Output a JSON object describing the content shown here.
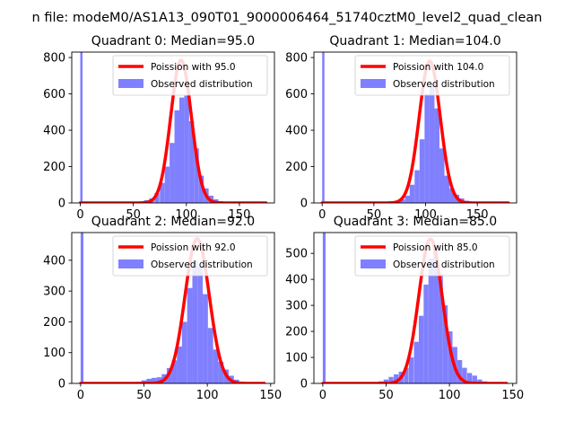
{
  "suptitle": "n file: modeM0/AS1A13_090T01_9000006464_51740cztM0_level2_quad_clean",
  "colors": {
    "poisson": "#ff0000",
    "hist": "#8080ff",
    "axes": "#000000"
  },
  "chart_data": [
    {
      "type": "bar",
      "title": "Quadrant 0: Median=95.0",
      "median": 95.0,
      "xlim": [
        -8,
        183
      ],
      "ylim": [
        0,
        830
      ],
      "xticks": [
        0,
        50,
        100,
        150
      ],
      "yticks": [
        0,
        200,
        400,
        600,
        800
      ],
      "legend": {
        "placement": "top-right",
        "entries": [
          "Poission with 95.0",
          "Observed distribution"
        ]
      },
      "series": [
        {
          "name": "Observed distribution",
          "kind": "histogram",
          "bin_width": 4.6,
          "bins": [
            [
              0,
              830
            ],
            [
              50,
              5
            ],
            [
              55,
              8
            ],
            [
              60,
              15
            ],
            [
              65,
              25
            ],
            [
              70,
              55
            ],
            [
              75,
              110
            ],
            [
              79.6,
              200
            ],
            [
              84.2,
              330
            ],
            [
              88.8,
              510
            ],
            [
              93.4,
              580
            ],
            [
              98,
              590
            ],
            [
              102.6,
              450
            ],
            [
              107.2,
              300
            ],
            [
              111.8,
              150
            ],
            [
              116.4,
              80
            ],
            [
              121,
              40
            ],
            [
              125.6,
              20
            ],
            [
              130.2,
              10
            ],
            [
              134.8,
              5
            ],
            [
              139.4,
              3
            ]
          ]
        },
        {
          "name": "Poission with 95.0",
          "kind": "curve",
          "lambda": 95.0,
          "x_range": [
            0,
            175
          ],
          "peak": 785
        }
      ]
    },
    {
      "type": "bar",
      "title": "Quadrant 1: Median=104.0",
      "median": 104.0,
      "xlim": [
        -8,
        188
      ],
      "ylim": [
        0,
        830
      ],
      "xticks": [
        0,
        50,
        100,
        150
      ],
      "yticks": [
        0,
        200,
        400,
        600,
        800
      ],
      "legend": {
        "placement": "top-right",
        "entries": [
          "Poission with 104.0",
          "Observed distribution"
        ]
      },
      "series": [
        {
          "name": "Observed distribution",
          "kind": "histogram",
          "bin_width": 4.8,
          "bins": [
            [
              0,
              830
            ],
            [
              60,
              5
            ],
            [
              65,
              8
            ],
            [
              70,
              12
            ],
            [
              75,
              20
            ],
            [
              80,
              40
            ],
            [
              84.6,
              100
            ],
            [
              89.4,
              180
            ],
            [
              94.2,
              350
            ],
            [
              99,
              600
            ],
            [
              103.8,
              650
            ],
            [
              108.6,
              520
            ],
            [
              113.4,
              300
            ],
            [
              118.2,
              150
            ],
            [
              123,
              80
            ],
            [
              127.8,
              45
            ],
            [
              132.6,
              25
            ],
            [
              137.4,
              12
            ],
            [
              142.2,
              5
            ]
          ]
        },
        {
          "name": "Poission with 104.0",
          "kind": "curve",
          "lambda": 104.0,
          "x_range": [
            0,
            180
          ],
          "peak": 780
        }
      ]
    },
    {
      "type": "bar",
      "title": "Quadrant 2: Median=92.0",
      "median": 92.0,
      "xlim": [
        -7,
        153
      ],
      "ylim": [
        0,
        490
      ],
      "xticks": [
        0,
        50,
        100,
        150
      ],
      "yticks": [
        0,
        100,
        200,
        300,
        400
      ],
      "legend": {
        "placement": "top-right",
        "entries": [
          "Poission with 92.0",
          "Observed distribution"
        ]
      },
      "series": [
        {
          "name": "Observed distribution",
          "kind": "histogram",
          "bin_width": 4.1,
          "bins": [
            [
              0,
              490
            ],
            [
              40,
              3
            ],
            [
              44,
              5
            ],
            [
              48,
              10
            ],
            [
              52,
              15
            ],
            [
              56,
              18
            ],
            [
              60,
              20
            ],
            [
              64,
              30
            ],
            [
              68,
              50
            ],
            [
              72,
              75
            ],
            [
              76,
              120
            ],
            [
              80,
              200
            ],
            [
              84.1,
              310
            ],
            [
              88.2,
              400
            ],
            [
              92.3,
              380
            ],
            [
              96.4,
              290
            ],
            [
              100.5,
              180
            ],
            [
              104.6,
              110
            ],
            [
              108.7,
              70
            ],
            [
              112.8,
              45
            ],
            [
              116.9,
              25
            ],
            [
              121,
              12
            ],
            [
              125,
              6
            ],
            [
              130,
              3
            ]
          ]
        },
        {
          "name": "Poission with 92.0",
          "kind": "curve",
          "lambda": 92.0,
          "x_range": [
            0,
            145
          ],
          "peak": 470
        }
      ]
    },
    {
      "type": "bar",
      "title": "Quadrant 3: Median=85.0",
      "median": 85.0,
      "xlim": [
        -7,
        153
      ],
      "ylim": [
        0,
        580
      ],
      "xticks": [
        0,
        50,
        100,
        150
      ],
      "yticks": [
        0,
        100,
        200,
        300,
        400,
        500
      ],
      "legend": {
        "placement": "top-right",
        "entries": [
          "Poission with 85.0",
          "Observed distribution"
        ]
      },
      "series": [
        {
          "name": "Observed distribution",
          "kind": "histogram",
          "bin_width": 3.8,
          "bins": [
            [
              0,
              580
            ],
            [
              40,
              5
            ],
            [
              44,
              8
            ],
            [
              48,
              15
            ],
            [
              52,
              25
            ],
            [
              56,
              35
            ],
            [
              60,
              45
            ],
            [
              64,
              60
            ],
            [
              68,
              100
            ],
            [
              72,
              160
            ],
            [
              75.8,
              260
            ],
            [
              79.6,
              380
            ],
            [
              83.4,
              480
            ],
            [
              87.2,
              520
            ],
            [
              91,
              420
            ],
            [
              94.8,
              300
            ],
            [
              98.6,
              200
            ],
            [
              102.4,
              140
            ],
            [
              106.2,
              90
            ],
            [
              110,
              60
            ],
            [
              114,
              40
            ],
            [
              118,
              30
            ],
            [
              122,
              15
            ],
            [
              126,
              8
            ],
            [
              130,
              4
            ]
          ]
        },
        {
          "name": "Poission with 85.0",
          "kind": "curve",
          "lambda": 85.0,
          "x_range": [
            0,
            145
          ],
          "peak": 555
        }
      ]
    }
  ]
}
